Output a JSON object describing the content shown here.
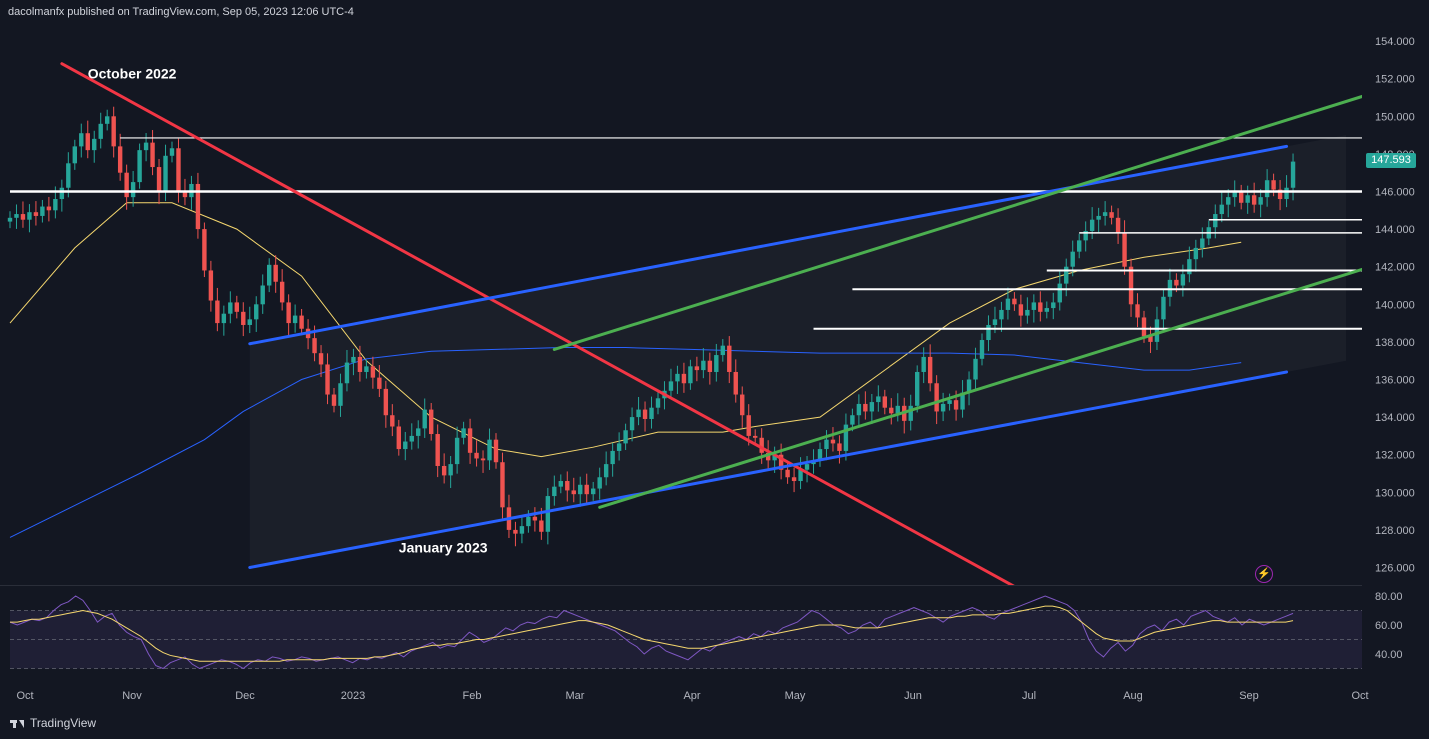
{
  "header": {
    "text": "dacolmanfx published on TradingView.com, Sep 05, 2023 12:06 UTC-4"
  },
  "footer": {
    "brand": "TradingView"
  },
  "chart_data": {
    "type": "candlestick",
    "price_axis": {
      "ylim": [
        125,
        155
      ],
      "ticks": [
        126,
        128,
        130,
        132,
        134,
        136,
        138,
        140,
        142,
        144,
        146,
        148,
        150,
        152,
        154
      ],
      "tick_labels": [
        "126.000",
        "128.000",
        "130.000",
        "132.000",
        "134.000",
        "136.000",
        "138.000",
        "140.000",
        "142.000",
        "144.000",
        "146.000",
        "148.000",
        "150.000",
        "152.000",
        "154.000"
      ]
    },
    "time_axis": {
      "labels": [
        "Oct",
        "Nov",
        "Dec",
        "2023",
        "Feb",
        "Mar",
        "Apr",
        "May",
        "Jun",
        "Jul",
        "Aug",
        "Sep",
        "Oct"
      ]
    },
    "last_price": {
      "label": "147.593",
      "value": 147.593,
      "color": "#26a69a"
    },
    "annotations": [
      {
        "text": "October 2022",
        "x_index": 12,
        "price": 152.0
      },
      {
        "text": "January 2023",
        "x_index": 60,
        "price": 126.8
      }
    ],
    "horizontal_levels": [
      {
        "price": 148.85,
        "color": "#ffffff",
        "width": 1.2,
        "from_index": 17
      },
      {
        "price": 146.0,
        "color": "#ffffff",
        "width": 2.5,
        "from_index": 0
      },
      {
        "price": 144.5,
        "color": "#ffffff",
        "width": 1.5,
        "from_index": 185
      },
      {
        "price": 143.8,
        "color": "#ffffff",
        "width": 1.5,
        "from_index": 165
      },
      {
        "price": 141.8,
        "color": "#ffffff",
        "width": 2,
        "from_index": 160
      },
      {
        "price": 140.8,
        "color": "#ffffff",
        "width": 2,
        "from_index": 130
      },
      {
        "price": 138.7,
        "color": "#ffffff",
        "width": 2,
        "from_index": 124
      }
    ],
    "trendlines": [
      {
        "name": "downtrend",
        "color": "#f23645",
        "p1": [
          8,
          152.8
        ],
        "p2": [
          156,
          124.8
        ]
      },
      {
        "name": "channel-top",
        "color": "#2962ff",
        "p1": [
          37,
          137.9
        ],
        "p2": [
          197,
          148.4
        ]
      },
      {
        "name": "channel-bottom",
        "color": "#2962ff",
        "p1": [
          37,
          126.0
        ],
        "p2": [
          197,
          136.4
        ]
      },
      {
        "name": "green-upper",
        "color": "#4caf50",
        "p1": [
          84,
          137.6
        ],
        "p2": [
          210,
          151.2
        ]
      },
      {
        "name": "green-lower",
        "color": "#4caf50",
        "p1": [
          91,
          129.2
        ],
        "p2": [
          210,
          142.0
        ]
      }
    ],
    "moving_averages": [
      {
        "name": "MA50",
        "color": "#f5d76e",
        "points": [
          [
            0,
            139
          ],
          [
            10,
            143
          ],
          [
            18,
            145.4
          ],
          [
            25,
            145.4
          ],
          [
            35,
            144
          ],
          [
            45,
            141.5
          ],
          [
            55,
            137
          ],
          [
            65,
            134
          ],
          [
            75,
            132.3
          ],
          [
            82,
            131.9
          ],
          [
            90,
            132.4
          ],
          [
            100,
            133.2
          ],
          [
            110,
            133.2
          ],
          [
            115,
            133.5
          ],
          [
            125,
            134
          ],
          [
            135,
            136.5
          ],
          [
            145,
            139
          ],
          [
            155,
            140.8
          ],
          [
            165,
            141.8
          ],
          [
            175,
            142.5
          ],
          [
            185,
            143
          ],
          [
            190,
            143.3
          ]
        ]
      },
      {
        "name": "MA200",
        "color": "#2962ff",
        "points": [
          [
            0,
            127.6
          ],
          [
            10,
            129.3
          ],
          [
            20,
            131
          ],
          [
            30,
            132.8
          ],
          [
            36,
            134.3
          ],
          [
            45,
            136
          ],
          [
            55,
            137.1
          ],
          [
            65,
            137.5
          ],
          [
            75,
            137.6
          ],
          [
            85,
            137.7
          ],
          [
            95,
            137.7
          ],
          [
            105,
            137.6
          ],
          [
            115,
            137.5
          ],
          [
            125,
            137.4
          ],
          [
            135,
            137.4
          ],
          [
            145,
            137.4
          ],
          [
            155,
            137.3
          ],
          [
            165,
            136.9
          ],
          [
            175,
            136.5
          ],
          [
            182,
            136.5
          ],
          [
            190,
            136.9
          ]
        ]
      }
    ],
    "rsi": {
      "ylim": [
        30,
        85
      ],
      "ticks": [
        40,
        60,
        80
      ],
      "tick_labels": [
        "40.00",
        "60.00",
        "80.00"
      ],
      "band": [
        30,
        70
      ],
      "rsi_values": [
        62,
        60,
        62,
        64,
        63,
        65,
        70,
        74,
        76,
        80,
        77,
        70,
        62,
        66,
        68,
        60,
        55,
        52,
        50,
        40,
        32,
        30,
        34,
        36,
        38,
        33,
        30,
        32,
        34,
        36,
        35,
        33,
        30,
        34,
        36,
        35,
        38,
        37,
        35,
        36,
        38,
        37,
        35,
        36,
        37,
        38,
        36,
        34,
        37,
        36,
        38,
        37,
        39,
        41,
        38,
        42,
        44,
        46,
        48,
        44,
        46,
        45,
        50,
        55,
        52,
        48,
        50,
        54,
        58,
        56,
        60,
        62,
        61,
        64,
        66,
        65,
        70,
        68,
        66,
        64,
        62,
        60,
        58,
        56,
        52,
        48,
        45,
        40,
        44,
        46,
        42,
        40,
        38,
        36,
        40,
        44,
        42,
        46,
        48,
        50,
        52,
        50,
        54,
        52,
        56,
        54,
        58,
        60,
        62,
        66,
        70,
        68,
        64,
        60,
        58,
        54,
        56,
        60,
        62,
        58,
        64,
        66,
        68,
        70,
        72,
        70,
        68,
        65,
        62,
        66,
        68,
        70,
        72,
        70,
        66,
        64,
        68,
        70,
        72,
        74,
        76,
        78,
        80,
        78,
        76,
        74,
        70,
        62,
        50,
        42,
        38,
        44,
        48,
        42,
        46,
        54,
        58,
        60,
        56,
        62,
        64,
        60,
        66,
        68,
        70,
        66,
        64,
        62,
        65,
        60,
        64,
        62,
        60,
        62,
        64,
        66,
        68
      ],
      "signal_values": [
        62,
        62,
        63,
        64,
        64,
        65,
        66,
        67,
        68,
        69,
        70,
        69,
        68,
        66,
        64,
        61,
        58,
        55,
        52,
        48,
        44,
        41,
        39,
        38,
        37,
        36,
        35,
        35,
        35,
        35,
        35,
        35,
        35,
        35,
        35,
        35,
        35,
        35,
        36,
        36,
        36,
        36,
        36,
        36,
        37,
        37,
        37,
        37,
        37,
        37,
        38,
        38,
        39,
        40,
        41,
        43,
        44,
        45,
        46,
        46,
        47,
        47,
        48,
        49,
        50,
        50,
        51,
        52,
        53,
        54,
        55,
        56,
        57,
        58,
        59,
        60,
        61,
        62,
        63,
        63,
        62,
        61,
        60,
        58,
        56,
        54,
        52,
        50,
        49,
        48,
        47,
        46,
        45,
        44,
        44,
        44,
        45,
        46,
        47,
        48,
        49,
        50,
        51,
        52,
        53,
        54,
        55,
        56,
        57,
        58,
        59,
        60,
        60,
        60,
        60,
        59,
        58,
        58,
        58,
        58,
        59,
        60,
        61,
        62,
        63,
        64,
        65,
        65,
        65,
        65,
        66,
        66,
        67,
        67,
        67,
        67,
        68,
        68,
        69,
        70,
        71,
        72,
        73,
        73,
        72,
        70,
        66,
        62,
        58,
        54,
        51,
        50,
        49,
        49,
        49,
        51,
        53,
        55,
        56,
        57,
        58,
        59,
        60,
        61,
        62,
        63,
        63,
        62,
        62,
        62,
        62,
        62,
        62,
        62,
        62,
        62,
        63
      ]
    },
    "candles_close": [
      144.6,
      144.8,
      144.5,
      144.9,
      144.7,
      145.2,
      145.0,
      145.6,
      146.2,
      147.5,
      148.4,
      149.1,
      148.2,
      148.8,
      149.6,
      150.0,
      148.4,
      147.0,
      145.7,
      146.5,
      148.2,
      148.6,
      147.3,
      146.0,
      147.9,
      148.3,
      146.0,
      145.7,
      146.4,
      144.0,
      141.8,
      140.2,
      139.0,
      139.5,
      140.1,
      139.6,
      138.9,
      139.2,
      140.0,
      141.0,
      142.1,
      141.2,
      140.1,
      139.0,
      139.4,
      138.7,
      138.2,
      137.4,
      136.8,
      135.2,
      134.6,
      135.8,
      136.9,
      137.2,
      136.4,
      136.7,
      136.1,
      135.5,
      134.1,
      133.5,
      132.3,
      132.7,
      133.0,
      133.4,
      134.4,
      133.1,
      131.4,
      130.9,
      131.5,
      132.9,
      133.4,
      132.1,
      131.8,
      131.7,
      132.8,
      131.6,
      129.2,
      128.0,
      127.8,
      128.2,
      128.7,
      128.5,
      127.9,
      129.8,
      130.3,
      130.6,
      130.1,
      129.9,
      130.4,
      129.9,
      130.2,
      130.8,
      131.5,
      132.2,
      132.6,
      133.3,
      134.0,
      134.4,
      133.9,
      134.5,
      135.0,
      135.4,
      135.9,
      136.3,
      135.8,
      136.7,
      136.5,
      137.0,
      136.4,
      137.3,
      137.8,
      136.4,
      135.2,
      134.1,
      133.0,
      132.9,
      132.1,
      131.7,
      132.0,
      131.2,
      130.8,
      130.6,
      131.2,
      131.5,
      131.7,
      132.3,
      132.8,
      132.6,
      132.2,
      133.6,
      134.1,
      134.7,
      134.3,
      134.8,
      135.1,
      134.5,
      134.2,
      134.6,
      133.8,
      134.6,
      136.4,
      137.2,
      135.8,
      134.3,
      134.7,
      134.9,
      134.4,
      135.3,
      136.0,
      137.1,
      138.1,
      138.9,
      139.2,
      139.7,
      140.3,
      140.0,
      139.4,
      139.7,
      140.1,
      139.6,
      139.8,
      140.1,
      141.1,
      142.0,
      142.8,
      143.4,
      143.9,
      144.5,
      144.7,
      144.9,
      144.6,
      143.8,
      142.0,
      140.0,
      139.3,
      138.3,
      138.0,
      139.2,
      140.4,
      141.3,
      141.0,
      141.6,
      142.4,
      143.0,
      143.5,
      144.1,
      144.8,
      145.3,
      145.7,
      146.0,
      145.4,
      145.8,
      145.3,
      145.7,
      146.6,
      146.1,
      145.6,
      146.2,
      147.59
    ]
  }
}
